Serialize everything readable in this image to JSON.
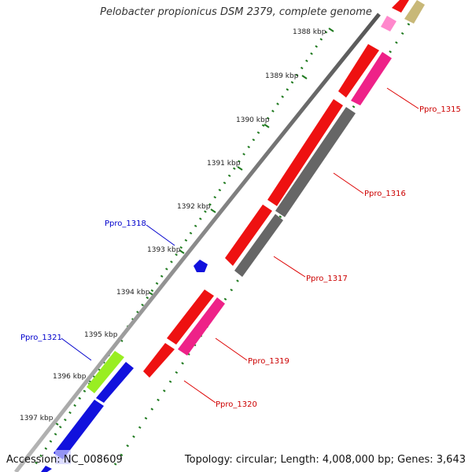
{
  "title": "Pelobacter propionicus DSM 2379, complete genome",
  "accession": "Accession: NC_008609",
  "summary": "Topology: circular; Length: 4,008,000 bp; Genes: 3,643",
  "colors": {
    "backbone": "#8a8a8a",
    "ticks": "#1f7a1f",
    "forward_label_line": "#0000cc",
    "reverse_label_line": "#dd0000",
    "red_gene": "#ee1111",
    "pink_gene": "#ee2288",
    "gray_gene": "#666666",
    "blue_gene": "#1111dd",
    "green_gene": "#99ee22",
    "light_pink_gene": "#ff88cc",
    "khaki_gene": "#c8b878"
  },
  "scale_labels": [
    "1388 kbp",
    "1389 kbp",
    "1390 kbp",
    "1391 kbp",
    "1392 kbp",
    "1393 kbp",
    "1394 kbp",
    "1395 kbp",
    "1396 kbp",
    "1397 kbp"
  ],
  "gene_labels": {
    "ppro_1315": "Ppro_1315",
    "ppro_1316": "Ppro_1316",
    "ppro_1317": "Ppro_1317",
    "ppro_1318": "Ppro_1318",
    "ppro_1319": "Ppro_1319",
    "ppro_1320": "Ppro_1320",
    "ppro_1321": "Ppro_1321"
  }
}
